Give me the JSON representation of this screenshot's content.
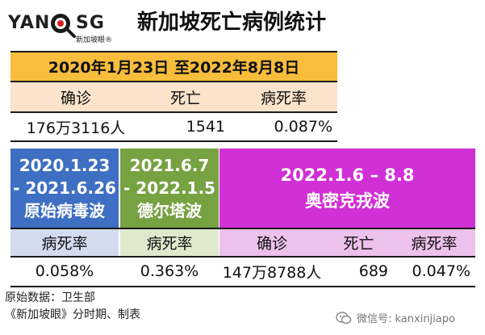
{
  "header": {
    "logo_left": "YAN",
    "logo_right": "SG",
    "logo_sub": "新加坡眼®",
    "title": "新加坡死亡病例统计"
  },
  "summary": {
    "date_range": "2020年1月23日 至2022年8月8日",
    "columns": [
      "确诊",
      "死亡",
      "病死率"
    ],
    "values": [
      "176万3116人",
      "1541",
      "0.087%"
    ]
  },
  "waves": [
    {
      "period_line1": "2020.1.23",
      "period_line2": "- 2021.6.26",
      "name": "原始病毒波",
      "header": "病死率",
      "value": "0.058%"
    },
    {
      "period_line1": "2021.6.7",
      "period_line2": "- 2022.1.5",
      "name": "德尔塔波",
      "header": "病死率",
      "value": "0.363%"
    },
    {
      "period_line1": "2022.1.6 – 8.8",
      "name": "奥密克戎波",
      "columns": [
        "确诊",
        "死亡",
        "病死率"
      ],
      "values": [
        "147万8788人",
        "689",
        "0.047%"
      ]
    }
  ],
  "footer": {
    "source": "原始数据：卫生部",
    "credit": "《新加坡眼》分时期、制表",
    "wechat": "微信号: kanxinjiapo"
  },
  "colors": {
    "gold": "#f7bd3b",
    "peach": "#fbe3cc",
    "blue": "#3f6fc3",
    "green": "#76a242",
    "purple": "#d030d5"
  }
}
